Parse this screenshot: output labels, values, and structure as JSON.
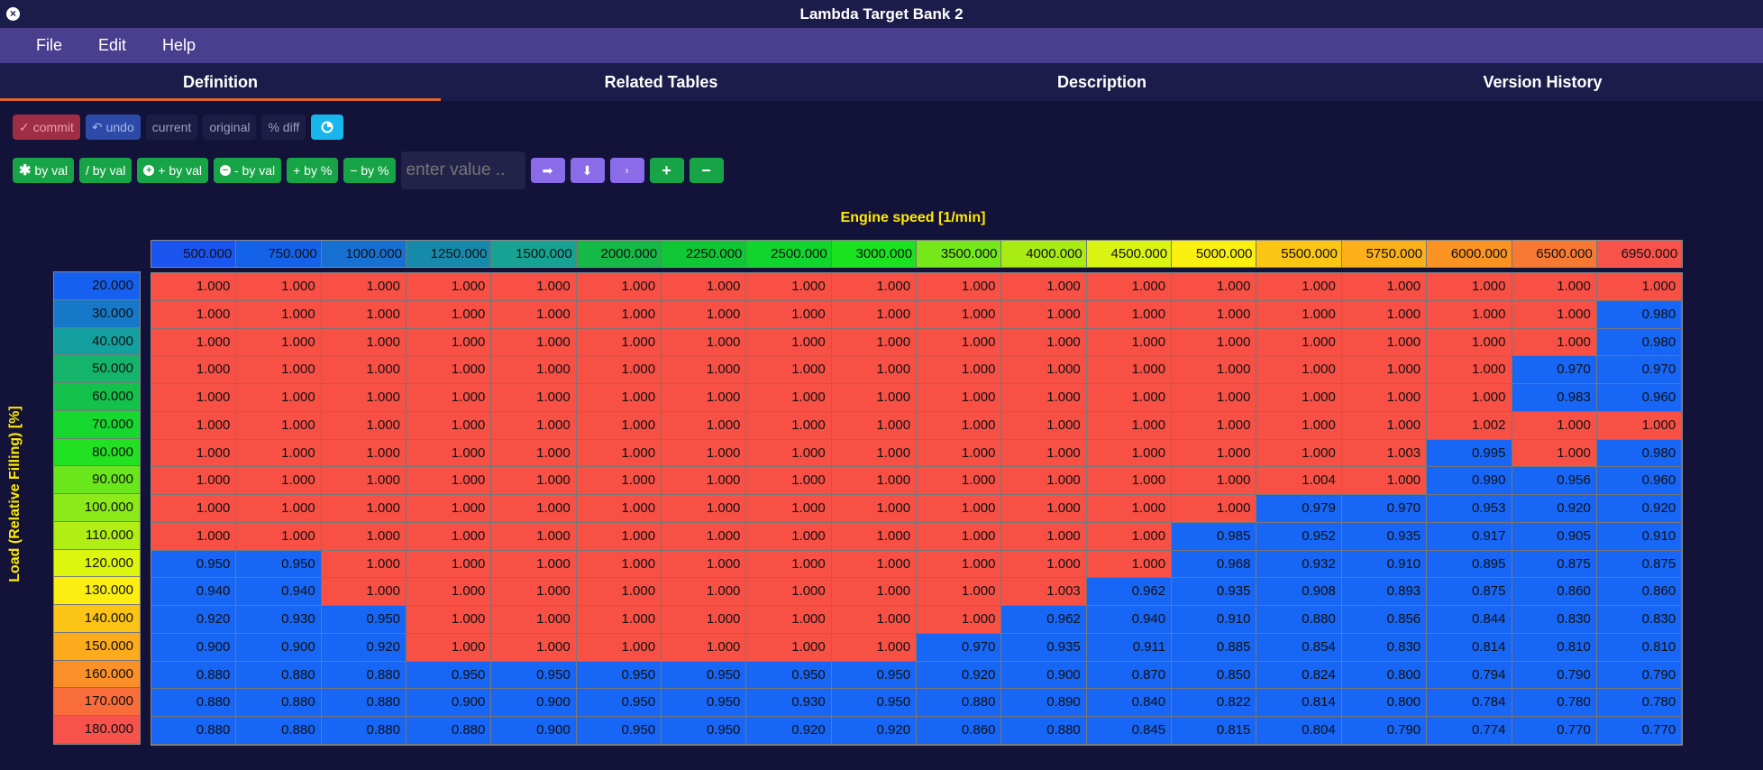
{
  "window": {
    "title": "Lambda Target Bank 2"
  },
  "menu": [
    "File",
    "Edit",
    "Help"
  ],
  "tabs": [
    "Definition",
    "Related Tables",
    "Description",
    "Version History"
  ],
  "toolbar1": {
    "commit": "commit",
    "undo": "undo",
    "current": "current",
    "original": "original",
    "diff": "% diff"
  },
  "toolbar2": {
    "mul_by_val": "by val",
    "div_by_val": "/ by val",
    "add_by_val": "+ by val",
    "sub_by_val": "- by val",
    "add_by_pct": "+ by %",
    "sub_by_pct": "− by %",
    "input_placeholder": "enter value .."
  },
  "table": {
    "x_label": "Engine speed [1/min]",
    "y_label": "Load (Relative Filling) [%]",
    "x_axis": [
      "500.000",
      "750.000",
      "1000.000",
      "1250.000",
      "1500.000",
      "2000.000",
      "2250.000",
      "2500.000",
      "3000.000",
      "3500.000",
      "4000.000",
      "4500.000",
      "5000.000",
      "5500.000",
      "5750.000",
      "6000.000",
      "6500.000",
      "6950.000"
    ],
    "x_colors": [
      "#1a55f0",
      "#1462e8",
      "#1771d2",
      "#168aaa",
      "#16a393",
      "#14b946",
      "#10c835",
      "#10d52c",
      "#1ae21f",
      "#75e81a",
      "#a8ec14",
      "#daf511",
      "#faf010",
      "#fbc514",
      "#fbb019",
      "#fa9321",
      "#f87a32",
      "#f8534a"
    ],
    "y_axis": [
      "20.000",
      "30.000",
      "40.000",
      "50.000",
      "60.000",
      "70.000",
      "80.000",
      "90.000",
      "100.000",
      "110.000",
      "120.000",
      "130.000",
      "140.000",
      "150.000",
      "160.000",
      "170.000",
      "180.000"
    ],
    "y_colors": [
      "#1660f0",
      "#1678c8",
      "#15a0a0",
      "#14b56a",
      "#14c24b",
      "#16d82e",
      "#22e022",
      "#6ae61c",
      "#8cea18",
      "#b0ee14",
      "#dcf610",
      "#fbee10",
      "#fbc416",
      "#fbab1c",
      "#fa9128",
      "#f86d3a",
      "#f7524c"
    ],
    "values": [
      [
        "1.000",
        "1.000",
        "1.000",
        "1.000",
        "1.000",
        "1.000",
        "1.000",
        "1.000",
        "1.000",
        "1.000",
        "1.000",
        "1.000",
        "1.000",
        "1.000",
        "1.000",
        "1.000",
        "1.000",
        "1.000"
      ],
      [
        "1.000",
        "1.000",
        "1.000",
        "1.000",
        "1.000",
        "1.000",
        "1.000",
        "1.000",
        "1.000",
        "1.000",
        "1.000",
        "1.000",
        "1.000",
        "1.000",
        "1.000",
        "1.000",
        "1.000",
        "0.980"
      ],
      [
        "1.000",
        "1.000",
        "1.000",
        "1.000",
        "1.000",
        "1.000",
        "1.000",
        "1.000",
        "1.000",
        "1.000",
        "1.000",
        "1.000",
        "1.000",
        "1.000",
        "1.000",
        "1.000",
        "1.000",
        "0.980"
      ],
      [
        "1.000",
        "1.000",
        "1.000",
        "1.000",
        "1.000",
        "1.000",
        "1.000",
        "1.000",
        "1.000",
        "1.000",
        "1.000",
        "1.000",
        "1.000",
        "1.000",
        "1.000",
        "1.000",
        "0.970",
        "0.970"
      ],
      [
        "1.000",
        "1.000",
        "1.000",
        "1.000",
        "1.000",
        "1.000",
        "1.000",
        "1.000",
        "1.000",
        "1.000",
        "1.000",
        "1.000",
        "1.000",
        "1.000",
        "1.000",
        "1.000",
        "0.983",
        "0.960"
      ],
      [
        "1.000",
        "1.000",
        "1.000",
        "1.000",
        "1.000",
        "1.000",
        "1.000",
        "1.000",
        "1.000",
        "1.000",
        "1.000",
        "1.000",
        "1.000",
        "1.000",
        "1.000",
        "1.002",
        "1.000",
        "1.000"
      ],
      [
        "1.000",
        "1.000",
        "1.000",
        "1.000",
        "1.000",
        "1.000",
        "1.000",
        "1.000",
        "1.000",
        "1.000",
        "1.000",
        "1.000",
        "1.000",
        "1.000",
        "1.003",
        "0.995",
        "1.000",
        "0.980"
      ],
      [
        "1.000",
        "1.000",
        "1.000",
        "1.000",
        "1.000",
        "1.000",
        "1.000",
        "1.000",
        "1.000",
        "1.000",
        "1.000",
        "1.000",
        "1.000",
        "1.004",
        "1.000",
        "0.990",
        "0.956",
        "0.960"
      ],
      [
        "1.000",
        "1.000",
        "1.000",
        "1.000",
        "1.000",
        "1.000",
        "1.000",
        "1.000",
        "1.000",
        "1.000",
        "1.000",
        "1.000",
        "1.000",
        "0.979",
        "0.970",
        "0.953",
        "0.920",
        "0.920"
      ],
      [
        "1.000",
        "1.000",
        "1.000",
        "1.000",
        "1.000",
        "1.000",
        "1.000",
        "1.000",
        "1.000",
        "1.000",
        "1.000",
        "1.000",
        "0.985",
        "0.952",
        "0.935",
        "0.917",
        "0.905",
        "0.910"
      ],
      [
        "0.950",
        "0.950",
        "1.000",
        "1.000",
        "1.000",
        "1.000",
        "1.000",
        "1.000",
        "1.000",
        "1.000",
        "1.000",
        "1.000",
        "0.968",
        "0.932",
        "0.910",
        "0.895",
        "0.875",
        "0.875"
      ],
      [
        "0.940",
        "0.940",
        "1.000",
        "1.000",
        "1.000",
        "1.000",
        "1.000",
        "1.000",
        "1.000",
        "1.000",
        "1.003",
        "0.962",
        "0.935",
        "0.908",
        "0.893",
        "0.875",
        "0.860",
        "0.860"
      ],
      [
        "0.920",
        "0.930",
        "0.950",
        "1.000",
        "1.000",
        "1.000",
        "1.000",
        "1.000",
        "1.000",
        "1.000",
        "0.962",
        "0.940",
        "0.910",
        "0.880",
        "0.856",
        "0.844",
        "0.830",
        "0.830"
      ],
      [
        "0.900",
        "0.900",
        "0.920",
        "1.000",
        "1.000",
        "1.000",
        "1.000",
        "1.000",
        "1.000",
        "0.970",
        "0.935",
        "0.911",
        "0.885",
        "0.854",
        "0.830",
        "0.814",
        "0.810",
        "0.810"
      ],
      [
        "0.880",
        "0.880",
        "0.880",
        "0.950",
        "0.950",
        "0.950",
        "0.950",
        "0.950",
        "0.950",
        "0.920",
        "0.900",
        "0.870",
        "0.850",
        "0.824",
        "0.800",
        "0.794",
        "0.790",
        "0.790"
      ],
      [
        "0.880",
        "0.880",
        "0.880",
        "0.900",
        "0.900",
        "0.950",
        "0.950",
        "0.930",
        "0.950",
        "0.880",
        "0.890",
        "0.840",
        "0.822",
        "0.814",
        "0.800",
        "0.784",
        "0.780",
        "0.780"
      ],
      [
        "0.880",
        "0.880",
        "0.880",
        "0.880",
        "0.900",
        "0.950",
        "0.950",
        "0.920",
        "0.920",
        "0.860",
        "0.880",
        "0.845",
        "0.815",
        "0.804",
        "0.790",
        "0.774",
        "0.770",
        "0.770"
      ]
    ],
    "cell_colors": {
      "high": "#f95045",
      "low": "#1766f5"
    }
  }
}
